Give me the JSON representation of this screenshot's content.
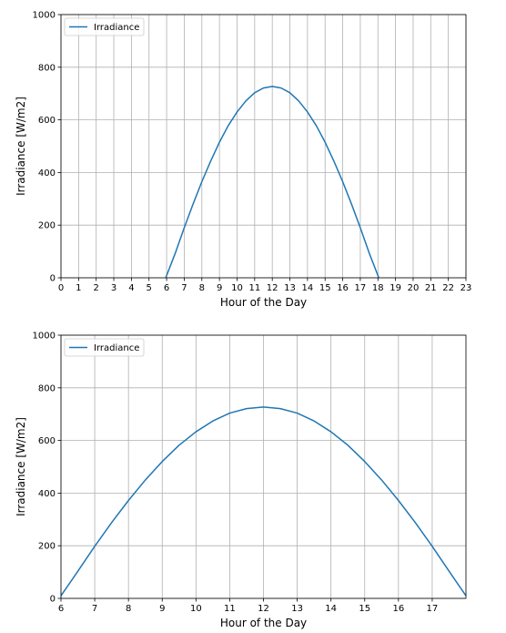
{
  "chart_data": [
    {
      "type": "line",
      "xlabel": "Hour of the Day",
      "ylabel": "Irradiance [W/m2]",
      "xlim": [
        0,
        23
      ],
      "ylim": [
        0,
        1000
      ],
      "xticks": [
        "0",
        "1",
        "2",
        "3",
        "4",
        "5",
        "6",
        "7",
        "8",
        "9",
        "10",
        "11",
        "12",
        "13",
        "14",
        "15",
        "16",
        "17",
        "18",
        "19",
        "20",
        "21",
        "22",
        "23"
      ],
      "yticks": [
        "0",
        "200",
        "400",
        "600",
        "800",
        "1000"
      ],
      "grid": true,
      "legend_position": "top-left",
      "color": "#1f77b4",
      "series": [
        {
          "name": "Irradiance",
          "x": [
            5.95,
            6.5,
            7,
            7.5,
            8,
            8.5,
            9,
            9.5,
            10,
            10.5,
            11,
            11.5,
            12,
            12.5,
            13,
            13.5,
            14,
            14.5,
            15,
            15.5,
            16,
            16.5,
            17,
            17.5,
            18.05
          ],
          "y": [
            0,
            95,
            190,
            280,
            365,
            443,
            515,
            578,
            630,
            672,
            703,
            721,
            727,
            721,
            703,
            672,
            630,
            578,
            515,
            443,
            365,
            280,
            190,
            95,
            0
          ]
        }
      ]
    },
    {
      "type": "line",
      "xlabel": "Hour of the Day",
      "ylabel": "Irradiance [W/m2]",
      "xlim": [
        6,
        18
      ],
      "ylim": [
        0,
        1000
      ],
      "xticks": [
        "6",
        "7",
        "8",
        "9",
        "10",
        "11",
        "12",
        "13",
        "14",
        "15",
        "16",
        "17"
      ],
      "yticks": [
        "0",
        "200",
        "400",
        "600",
        "800",
        "1000"
      ],
      "grid": true,
      "legend_position": "top-left",
      "color": "#1f77b4",
      "series": [
        {
          "name": "Irradiance",
          "x": [
            6,
            6.5,
            7,
            7.5,
            8,
            8.5,
            9,
            9.5,
            10,
            10.5,
            11,
            11.5,
            12,
            12.5,
            13,
            13.5,
            14,
            14.5,
            15,
            15.5,
            16,
            16.5,
            17,
            17.5,
            18
          ],
          "y": [
            10,
            103,
            198,
            288,
            372,
            450,
            520,
            582,
            633,
            674,
            704,
            721,
            727,
            721,
            704,
            674,
            633,
            582,
            520,
            450,
            372,
            288,
            198,
            103,
            10
          ]
        }
      ]
    }
  ]
}
